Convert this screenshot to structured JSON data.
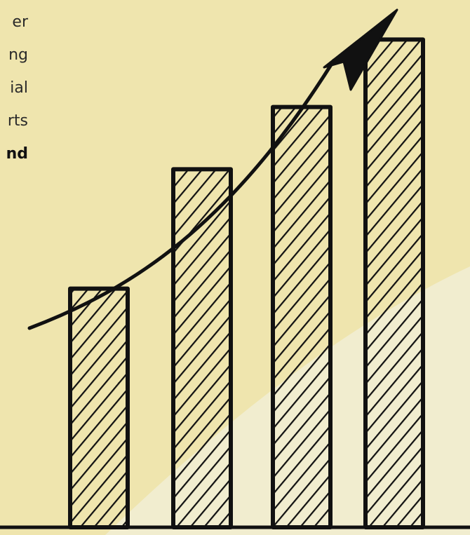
{
  "colors": {
    "background": "#efe5ae",
    "light_wedge": "#f1edcf",
    "ink": "#111111"
  },
  "text_fragments": [
    {
      "text": "er",
      "bold": false
    },
    {
      "text": "ng",
      "bold": false
    },
    {
      "text": "ial",
      "bold": false
    },
    {
      "text": "rts",
      "bold": false
    },
    {
      "text": "nd",
      "bold": true
    }
  ],
  "chart_data": {
    "type": "bar",
    "categories": [
      "",
      "",
      "",
      ""
    ],
    "values": [
      46,
      69,
      81,
      94
    ],
    "ylim": [
      0,
      100
    ],
    "title": "",
    "xlabel": "",
    "ylabel": "",
    "grid": false,
    "bar_fill": "diagonal-hatch",
    "trend_arrow": "up-right"
  }
}
